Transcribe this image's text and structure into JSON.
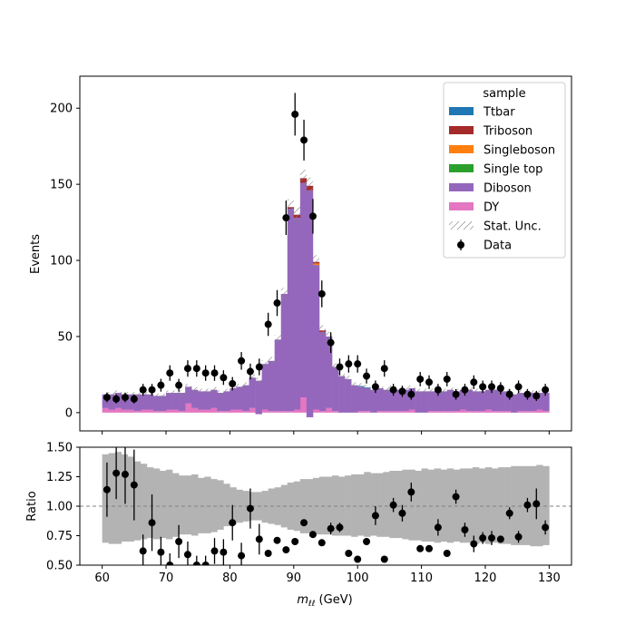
{
  "chart_data": [
    {
      "type": "bar",
      "panel": "main",
      "stacked": true,
      "ylabel": "Events",
      "ylim": [
        -12,
        221
      ],
      "xlim": [
        56.5,
        133.5
      ],
      "yticks": [
        0,
        50,
        100,
        150,
        200
      ],
      "x": [
        60.5,
        61.5,
        62.5,
        63.5,
        64.5,
        65.5,
        66.5,
        67.5,
        68.5,
        69.5,
        70.5,
        71.5,
        72.5,
        73.5,
        74.5,
        75.5,
        76.5,
        77.5,
        78.5,
        79.5,
        80.5,
        81.5,
        82.5,
        83.5,
        84.5,
        85.5,
        86.5,
        87.5,
        88.5,
        89.5,
        90.5,
        91.5,
        92.5,
        93.5,
        94.5,
        95.5,
        96.5,
        97.5,
        98.5,
        99.5,
        100.5,
        101.5,
        102.5,
        103.5,
        104.5,
        105.5,
        106.5,
        107.5,
        108.5,
        109.5,
        110.5,
        111.5,
        112.5,
        113.5,
        114.5,
        115.5,
        116.5,
        117.5,
        118.5,
        119.5,
        120.5,
        121.5,
        122.5,
        123.5,
        124.5,
        125.5,
        126.5,
        127.5,
        128.5,
        129.5
      ],
      "series": [
        {
          "name": "Ttbar",
          "color": "#1f77b4",
          "values": [
            0,
            0,
            0,
            0,
            0,
            0,
            0,
            0,
            0,
            0,
            0,
            0,
            0,
            0,
            0,
            0,
            0,
            0,
            0,
            0,
            0,
            0,
            0,
            0,
            0,
            0,
            0,
            0,
            0,
            0,
            0,
            0,
            0,
            0,
            0,
            0,
            0,
            0,
            0,
            0,
            0.5,
            0.5,
            0,
            0,
            0,
            0,
            0,
            0,
            0,
            0,
            0,
            0,
            0,
            0,
            0,
            0,
            0,
            0,
            0,
            0,
            0,
            0,
            0,
            0,
            0,
            0,
            0,
            0,
            0,
            0
          ]
        },
        {
          "name": "Triboson",
          "color": "#a52a2a",
          "values": [
            0,
            0,
            0,
            0,
            0,
            0,
            0,
            0,
            0,
            0,
            0,
            0,
            0,
            0,
            0,
            0,
            0,
            0,
            0,
            0,
            0,
            0,
            0,
            0,
            0,
            0,
            0,
            0,
            0,
            1,
            2,
            3,
            3,
            1,
            1,
            0,
            0,
            0,
            0,
            0,
            0,
            0,
            0,
            0,
            0,
            0,
            0,
            0,
            0,
            0,
            0,
            0,
            0,
            0,
            0,
            0,
            0,
            0,
            0,
            0,
            0,
            0,
            0,
            0,
            0,
            0,
            0,
            0,
            0,
            0
          ]
        },
        {
          "name": "Singleboson",
          "color": "#ff7f0e",
          "values": [
            0,
            0,
            0,
            0,
            0,
            0,
            0,
            0,
            0,
            0,
            0,
            0,
            0,
            0,
            0,
            0,
            0,
            0,
            0,
            0,
            0,
            0,
            0,
            0,
            0,
            0,
            0,
            0,
            0,
            0,
            0,
            0,
            0,
            1,
            0,
            0,
            0,
            0,
            0,
            0,
            0,
            0,
            0,
            0,
            0,
            0,
            0,
            0,
            0,
            0,
            0,
            0,
            0,
            0,
            0,
            0,
            0,
            0,
            0,
            0,
            0,
            0,
            0,
            0,
            0,
            0,
            0,
            0,
            0,
            0
          ]
        },
        {
          "name": "Single top",
          "color": "#2ca02c",
          "values": [
            0,
            0,
            0,
            0,
            0,
            0,
            0,
            0,
            0,
            0,
            0,
            0,
            0,
            0,
            0,
            0,
            0,
            0,
            0,
            0,
            0,
            0,
            0,
            0,
            0,
            0,
            0,
            0,
            0,
            0,
            0,
            0,
            0,
            0,
            0,
            0,
            0,
            0,
            0,
            0,
            0,
            0,
            0,
            0,
            0,
            0,
            0,
            0,
            0,
            0,
            0,
            0,
            0,
            0,
            0,
            0,
            0,
            0,
            0,
            0,
            0,
            0,
            0,
            0,
            0,
            0,
            0,
            0,
            0,
            0
          ]
        },
        {
          "name": "Diboson",
          "color": "#9467bd",
          "values": [
            9,
            10,
            10,
            10,
            10,
            11,
            10,
            10,
            10,
            10,
            11,
            11,
            12,
            11,
            12,
            12,
            12,
            12,
            12,
            13,
            14,
            15,
            17,
            20,
            22,
            30,
            33,
            47,
            77,
            133,
            126,
            141,
            149,
            95,
            52,
            47,
            29,
            24,
            22,
            18,
            16,
            15,
            15,
            15,
            14,
            15,
            14,
            14,
            14,
            14,
            14,
            13,
            13,
            13,
            14,
            13,
            13,
            14,
            13,
            13,
            13,
            14,
            13,
            13,
            12,
            12,
            12,
            12,
            11,
            12
          ]
        },
        {
          "name": "DY",
          "color": "#e377c2",
          "values": [
            3,
            2,
            3,
            2,
            2,
            1,
            2,
            2,
            1,
            1,
            2,
            2,
            1,
            6,
            3,
            2,
            2,
            3,
            1,
            1,
            2,
            2,
            1,
            3,
            -1,
            2,
            1,
            1,
            1,
            1,
            2,
            10,
            -3,
            2,
            1,
            3,
            1,
            0,
            0,
            0,
            1,
            1,
            0,
            1,
            1,
            1,
            1,
            1,
            2,
            0,
            0,
            1,
            1,
            1,
            1,
            1,
            2,
            1,
            1,
            1,
            2,
            1,
            1,
            1,
            0,
            1,
            1,
            1,
            2,
            1
          ]
        }
      ],
      "data_points": {
        "name": "Data",
        "x": [
          60.75,
          62.2,
          63.6,
          65,
          66.4,
          67.8,
          69.2,
          70.6,
          72.0,
          73.4,
          74.8,
          76.2,
          77.6,
          79.0,
          80.4,
          81.8,
          83.2,
          84.6,
          86.0,
          87.4,
          88.8,
          90.2,
          91.6,
          93.0,
          94.4,
          95.8,
          97.2,
          98.6,
          100.0,
          101.4,
          102.8,
          104.2,
          105.6,
          107.0,
          108.4,
          109.8,
          111.2,
          112.6,
          114.0,
          115.4,
          116.8,
          118.2,
          119.6,
          121.0,
          122.4,
          123.8,
          125.2,
          126.6,
          128.0,
          129.4
        ],
        "y": [
          10,
          9,
          10,
          9,
          15,
          15,
          18,
          26,
          18,
          29,
          29,
          26,
          26,
          23,
          19,
          34,
          27,
          30,
          58,
          72,
          128,
          196,
          179,
          129,
          78,
          46,
          30,
          32,
          32,
          24,
          17,
          29,
          15,
          14,
          12,
          22,
          20,
          15,
          22,
          12,
          15,
          20,
          17,
          17,
          16,
          12,
          17,
          12,
          11,
          15
        ],
        "yerr": [
          3.2,
          3,
          3.2,
          3,
          3.9,
          3.9,
          4.2,
          5.1,
          4.2,
          5.4,
          5.4,
          5.1,
          5.1,
          4.8,
          4.4,
          5.8,
          5.2,
          5.5,
          7.6,
          8.5,
          11.3,
          14,
          13.4,
          11.4,
          8.8,
          6.8,
          5.5,
          5.7,
          5.7,
          4.9,
          4.1,
          5.4,
          3.9,
          3.7,
          3.5,
          4.7,
          4.5,
          3.9,
          4.7,
          3.5,
          3.9,
          4.5,
          4.1,
          4.1,
          4,
          3.5,
          4.1,
          3.5,
          3.3,
          3.9
        ]
      },
      "legend": {
        "title": "sample",
        "placement": "top-right",
        "entries": [
          "Ttbar",
          "Triboson",
          "Singleboson",
          "Single top",
          "Diboson",
          "DY",
          "Stat. Unc.",
          "Data"
        ]
      },
      "uncertainty_label": "Stat. Unc."
    },
    {
      "type": "scatter",
      "panel": "ratio",
      "ylabel": "Ratio",
      "xlabel": "m_{ℓℓ} (GeV)",
      "xlabel_main": "m",
      "xlabel_sub": "ℓℓ",
      "xlabel_unit": " (GeV)",
      "xlim": [
        56.5,
        133.5
      ],
      "ylim": [
        0.5,
        1.5
      ],
      "xticks": [
        60,
        70,
        80,
        90,
        100,
        110,
        120,
        130
      ],
      "yticks": [
        "0.50",
        "0.75",
        "1.00",
        "1.25",
        "1.50"
      ],
      "reference_line": 1.0,
      "unc_band": {
        "lower": [
          0.69,
          0.68,
          0.68,
          0.7,
          0.7,
          0.71,
          0.72,
          0.73,
          0.72,
          0.73,
          0.72,
          0.74,
          0.76,
          0.76,
          0.75,
          0.77,
          0.77,
          0.78,
          0.8,
          0.83,
          0.85,
          0.86,
          0.87,
          0.88,
          0.88,
          0.86,
          0.85,
          0.84,
          0.82,
          0.8,
          0.79,
          0.77,
          0.77,
          0.76,
          0.76,
          0.76,
          0.75,
          0.75,
          0.75,
          0.74,
          0.75,
          0.74,
          0.75,
          0.74,
          0.74,
          0.73,
          0.73,
          0.72,
          0.71,
          0.71,
          0.7,
          0.7,
          0.69,
          0.7,
          0.69,
          0.7,
          0.69,
          0.69,
          0.68,
          0.69,
          0.68,
          0.69,
          0.68,
          0.68,
          0.67,
          0.67,
          0.67,
          0.66,
          0.66,
          0.67
        ],
        "upper": [
          1.44,
          1.45,
          1.46,
          1.44,
          1.42,
          1.38,
          1.36,
          1.33,
          1.32,
          1.3,
          1.31,
          1.28,
          1.26,
          1.26,
          1.27,
          1.24,
          1.25,
          1.23,
          1.22,
          1.19,
          1.16,
          1.14,
          1.13,
          1.12,
          1.12,
          1.13,
          1.15,
          1.16,
          1.18,
          1.2,
          1.21,
          1.23,
          1.23,
          1.24,
          1.25,
          1.25,
          1.26,
          1.25,
          1.26,
          1.27,
          1.27,
          1.29,
          1.28,
          1.28,
          1.29,
          1.3,
          1.3,
          1.31,
          1.31,
          1.3,
          1.32,
          1.31,
          1.32,
          1.31,
          1.32,
          1.31,
          1.32,
          1.32,
          1.33,
          1.32,
          1.33,
          1.32,
          1.33,
          1.33,
          1.34,
          1.34,
          1.34,
          1.34,
          1.35,
          1.34
        ]
      },
      "points": {
        "x": [
          60.75,
          62.2,
          63.6,
          65,
          66.4,
          67.8,
          69.2,
          70.6,
          72.0,
          73.4,
          74.8,
          76.2,
          77.6,
          79.0,
          80.4,
          81.8,
          83.2,
          84.6,
          86.0,
          87.4,
          88.8,
          90.2,
          91.6,
          93.0,
          94.4,
          95.8,
          97.2,
          98.6,
          100.0,
          101.4,
          102.8,
          104.2,
          105.6,
          107.0,
          108.4,
          109.8,
          111.2,
          112.6,
          114.0,
          115.4,
          116.8,
          118.2,
          119.6,
          121.0,
          122.4,
          123.8,
          125.2,
          126.6,
          128.0,
          129.4
        ],
        "y": [
          1.14,
          1.28,
          1.27,
          1.18,
          0.62,
          0.86,
          0.61,
          0.5,
          0.7,
          0.59,
          0.5,
          0.5,
          0.62,
          0.61,
          0.86,
          0.58,
          0.98,
          0.72,
          0.6,
          0.71,
          0.63,
          0.7,
          0.86,
          0.76,
          0.69,
          0.81,
          0.82,
          0.6,
          0.55,
          0.7,
          0.92,
          0.55,
          1.01,
          0.94,
          1.12,
          0.64,
          0.64,
          0.82,
          0.6,
          1.08,
          0.8,
          0.68,
          0.73,
          0.73,
          0.72,
          0.94,
          0.74,
          1.01,
          1.02,
          0.82
        ],
        "yerr": [
          0.23,
          0.22,
          0.25,
          0.3,
          0.14,
          0.24,
          0.13,
          0.1,
          0.14,
          0.11,
          0.08,
          0.08,
          0.11,
          0.11,
          0.15,
          0.11,
          0.17,
          0.13,
          0,
          0,
          0,
          0,
          0,
          0,
          0,
          0.05,
          0.04,
          0,
          0,
          0,
          0.08,
          0,
          0.06,
          0.07,
          0.08,
          0,
          0,
          0.07,
          0,
          0.06,
          0.06,
          0.07,
          0.05,
          0.06,
          0,
          0.05,
          0.05,
          0.06,
          0.13,
          0.06
        ]
      }
    }
  ]
}
